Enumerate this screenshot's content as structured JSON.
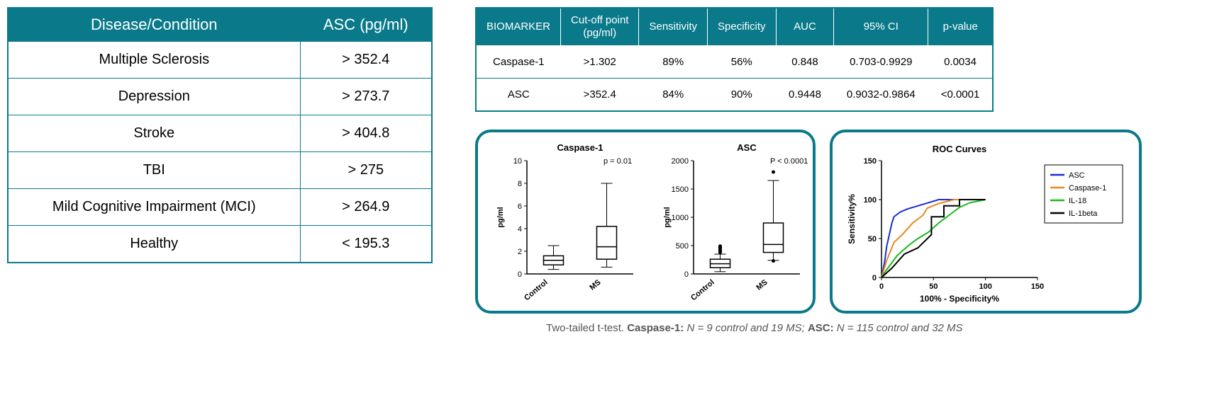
{
  "colors": {
    "teal": "#0a7a8a",
    "white": "#ffffff",
    "black": "#000000",
    "grey_text": "#555555",
    "asc_line": "#1a2bd6",
    "caspase_line": "#e58a1f",
    "il18_line": "#18b818",
    "il1beta_line": "#000000"
  },
  "disease_table": {
    "columns": [
      "Disease/Condition",
      "ASC (pg/ml)"
    ],
    "rows": [
      [
        "Multiple Sclerosis",
        "> 352.4"
      ],
      [
        "Depression",
        "> 273.7"
      ],
      [
        "Stroke",
        "> 404.8"
      ],
      [
        "TBI",
        "> 275"
      ],
      [
        "Mild Cognitive Impairment (MCI)",
        "> 264.9"
      ],
      [
        "Healthy",
        "< 195.3"
      ]
    ]
  },
  "biomarker_table": {
    "columns": [
      "BIOMARKER",
      "Cut-off point (pg/ml)",
      "Sensitivity",
      "Specificity",
      "AUC",
      "95% CI",
      "p-value"
    ],
    "rows": [
      [
        "Caspase-1",
        ">1.302",
        "89%",
        "56%",
        "0.848",
        "0.703-0.9929",
        "0.0034"
      ],
      [
        "ASC",
        ">352.4",
        "84%",
        "90%",
        "0.9448",
        "0.9032-0.9864",
        "<0.0001"
      ]
    ]
  },
  "boxplots": {
    "caspase": {
      "title": "Caspase-1",
      "ylabel": "pg/ml",
      "ylim": [
        0,
        10
      ],
      "ytick_step": 2,
      "categories": [
        "Control",
        "MS"
      ],
      "p_text": "p = 0.01",
      "boxes": [
        {
          "q1": 0.8,
          "median": 1.2,
          "q3": 1.6,
          "wlo": 0.4,
          "whi": 2.5,
          "outliers": []
        },
        {
          "q1": 1.3,
          "median": 2.4,
          "q3": 4.2,
          "wlo": 0.6,
          "whi": 8.0,
          "outliers": []
        }
      ]
    },
    "asc": {
      "title": "ASC",
      "ylabel": "pg/ml",
      "ylim": [
        0,
        2000
      ],
      "ytick_step": 500,
      "categories": [
        "Control",
        "MS"
      ],
      "p_text": "P < 0.0001",
      "boxes": [
        {
          "q1": 110,
          "median": 180,
          "q3": 260,
          "wlo": 40,
          "whi": 350,
          "outliers": [
            380,
            400,
            420,
            440,
            460,
            470,
            480,
            490
          ]
        },
        {
          "q1": 380,
          "median": 520,
          "q3": 900,
          "wlo": 240,
          "whi": 1650,
          "outliers": [
            1800,
            230
          ]
        }
      ]
    }
  },
  "roc": {
    "title": "ROC Curves",
    "xlabel": "100% - Specificity%",
    "ylabel": "Sensitivity%",
    "xlim": [
      0,
      150
    ],
    "ylim": [
      0,
      150
    ],
    "xtick_step": 50,
    "ytick_step": 50,
    "legend": [
      "ASC",
      "Caspase-1",
      "IL-18",
      "IL-1beta"
    ],
    "curves": {
      "ASC": [
        [
          0,
          0
        ],
        [
          3,
          20
        ],
        [
          5,
          40
        ],
        [
          8,
          58
        ],
        [
          10,
          70
        ],
        [
          12,
          78
        ],
        [
          18,
          84
        ],
        [
          25,
          88
        ],
        [
          35,
          92
        ],
        [
          45,
          96
        ],
        [
          55,
          100
        ],
        [
          100,
          100
        ]
      ],
      "Caspase-1": [
        [
          0,
          0
        ],
        [
          5,
          22
        ],
        [
          12,
          45
        ],
        [
          20,
          55
        ],
        [
          30,
          70
        ],
        [
          40,
          80
        ],
        [
          44,
          89
        ],
        [
          55,
          95
        ],
        [
          70,
          100
        ],
        [
          100,
          100
        ]
      ],
      "IL-18": [
        [
          0,
          0
        ],
        [
          5,
          10
        ],
        [
          15,
          28
        ],
        [
          25,
          40
        ],
        [
          35,
          50
        ],
        [
          45,
          58
        ],
        [
          55,
          70
        ],
        [
          65,
          80
        ],
        [
          75,
          90
        ],
        [
          85,
          96
        ],
        [
          100,
          100
        ]
      ],
      "IL-1beta": [
        [
          0,
          0
        ],
        [
          10,
          12
        ],
        [
          22,
          30
        ],
        [
          35,
          38
        ],
        [
          48,
          55
        ],
        [
          48,
          78
        ],
        [
          60,
          78
        ],
        [
          60,
          92
        ],
        [
          75,
          92
        ],
        [
          75,
          100
        ],
        [
          100,
          100
        ]
      ]
    }
  },
  "footnote": {
    "prefix": "Two-tailed t-test. ",
    "caspase_label": "Caspase-1:",
    "caspase_n": " N = 9 control and 19 MS; ",
    "asc_label": "ASC:",
    "asc_n": " N = 115 control and 32 MS"
  }
}
